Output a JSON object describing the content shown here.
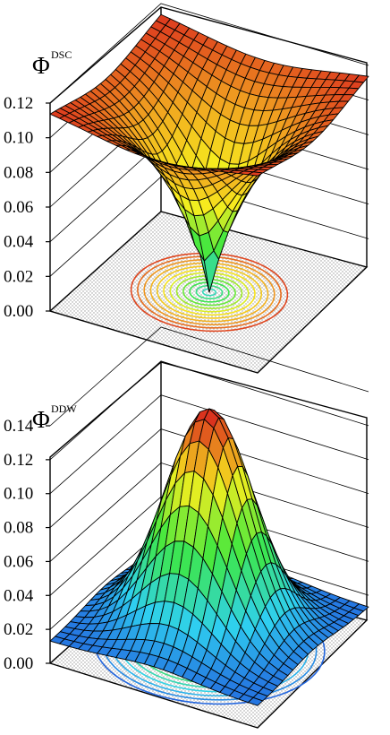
{
  "charts": [
    {
      "symbol": "Φ",
      "superscript": "DSC",
      "tick_labels": [
        "0.00",
        "0.02",
        "0.04",
        "0.06",
        "0.08",
        "0.10",
        "0.12"
      ]
    },
    {
      "symbol": "Φ",
      "superscript": "DDW",
      "tick_labels": [
        "0.00",
        "0.02",
        "0.04",
        "0.06",
        "0.08",
        "0.10",
        "0.12",
        "0.14"
      ]
    }
  ],
  "chart_data": [
    {
      "type": "surface3d",
      "title": "Φ DSC",
      "zlim": [
        0,
        0.12
      ],
      "z_ticks": [
        0.0,
        0.02,
        0.04,
        0.06,
        0.08,
        0.1,
        0.12
      ],
      "shape": "inverted-cone: minimum 0.00 at center, plateau ≈0.12 at edges",
      "center_value": 0.0,
      "edge_value": 0.12,
      "contour_projection": "concentric circles on floor",
      "colormap": [
        "#2fd0f0",
        "#3ee840",
        "#f7ee1e",
        "#f0a020",
        "#d81e1e"
      ]
    },
    {
      "type": "surface3d",
      "title": "Φ DDW",
      "zlim": [
        0,
        0.14
      ],
      "z_ticks": [
        0.0,
        0.02,
        0.04,
        0.06,
        0.08,
        0.1,
        0.12,
        0.14
      ],
      "shape": "gaussian peak: maximum ≈0.14 at center, ≈0.02 at corners",
      "center_value": 0.14,
      "edge_value": 0.02,
      "contour_projection": "concentric circles on floor",
      "colormap": [
        "#1f3fd8",
        "#2fd0f0",
        "#3ee840",
        "#f7ee1e",
        "#d81e1e"
      ]
    }
  ]
}
